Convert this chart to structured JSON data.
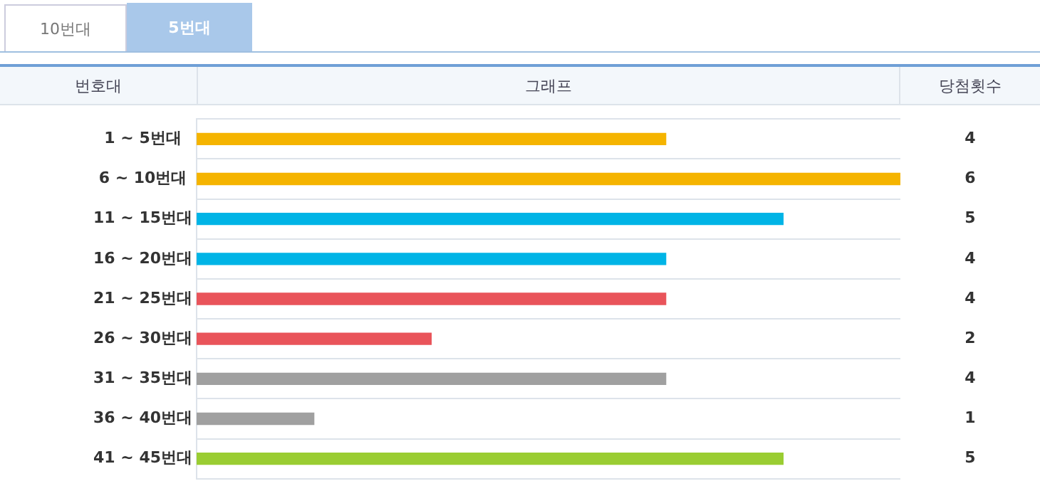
{
  "chart_data": {
    "type": "bar",
    "orientation": "horizontal",
    "annotations": [
      "10번대",
      "5번대",
      "당첨횟수"
    ],
    "ylabel": "번호대",
    "xlabel": "그래프",
    "categories": [
      "1 ~ 5번대",
      "6 ~ 10번대",
      "11 ~ 15번대",
      "16 ~ 20번대",
      "21 ~ 25번대",
      "26 ~ 30번대",
      "31 ~ 35번대",
      "36 ~ 40번대",
      "41 ~ 45번대"
    ],
    "values": [
      4,
      6,
      5,
      4,
      4,
      2,
      4,
      1,
      5
    ],
    "colors": [
      "#f5b400",
      "#f5b400",
      "#00b4e6",
      "#00b4e6",
      "#e9545a",
      "#e9545a",
      "#a0a0a0",
      "#a0a0a0",
      "#9acd32"
    ],
    "xlim": [
      0,
      6
    ],
    "data_labels": true,
    "tick_labels": "y",
    "grid": "y"
  }
}
